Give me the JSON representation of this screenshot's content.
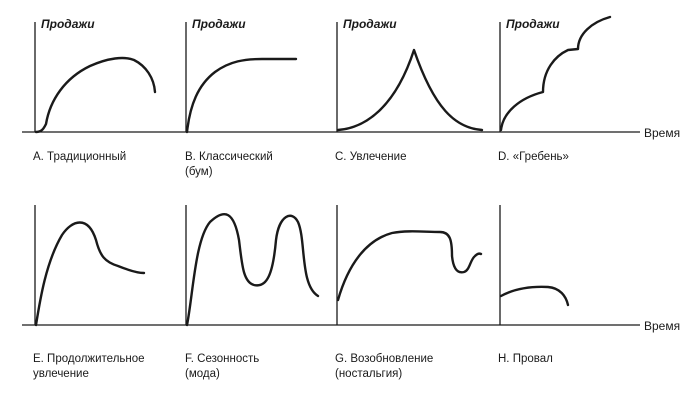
{
  "axis_labels": {
    "y": "Продажи",
    "x": "Время"
  },
  "panels": [
    {
      "id": "A",
      "caption": [
        "A. Традиционный"
      ],
      "shape": "traditional"
    },
    {
      "id": "B",
      "caption": [
        "B. Классический",
        "(бум)"
      ],
      "shape": "classic-boom"
    },
    {
      "id": "C",
      "caption": [
        "C. Увлечение"
      ],
      "shape": "fad"
    },
    {
      "id": "D",
      "caption": [
        "D. «Гребень»"
      ],
      "shape": "scalloped"
    },
    {
      "id": "E",
      "caption": [
        "E. Продолжительное",
        "увлечение"
      ],
      "shape": "extended-fad"
    },
    {
      "id": "F",
      "caption": [
        "F. Сезонность",
        "(мода)"
      ],
      "shape": "seasonal"
    },
    {
      "id": "G",
      "caption": [
        "G. Возобновление",
        "(ностальгия)"
      ],
      "shape": "revival"
    },
    {
      "id": "H",
      "caption": [
        "H. Провал"
      ],
      "shape": "failure"
    }
  ]
}
